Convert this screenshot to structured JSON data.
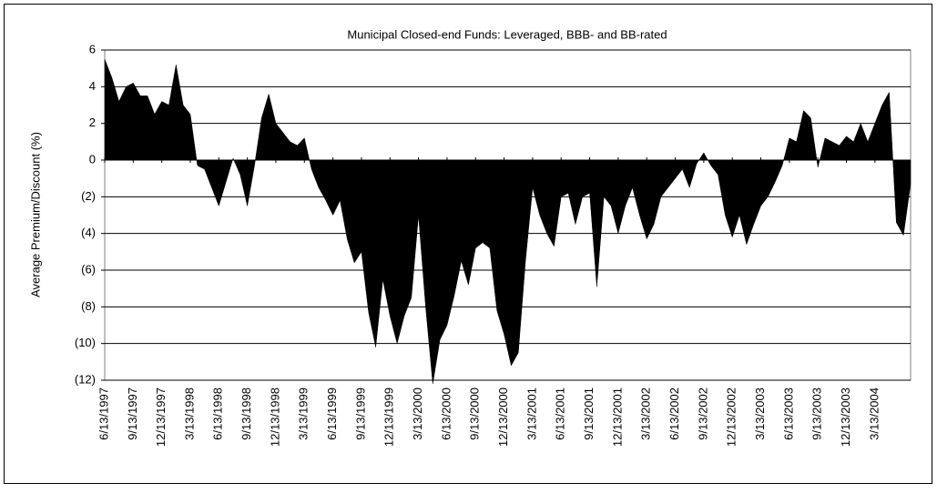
{
  "chart_data": {
    "type": "area",
    "title": "Municipal Closed-end Funds: Leveraged, BBB- and BB-rated",
    "y_label": "Average Premium/Discount (%)",
    "color": "#000000",
    "categories": [
      "6/13/1997",
      null,
      null,
      null,
      "9/13/1997",
      null,
      null,
      null,
      "12/13/1997",
      null,
      null,
      null,
      "3/13/1998",
      null,
      null,
      null,
      "6/13/1998",
      null,
      null,
      null,
      "9/13/1998",
      null,
      null,
      null,
      "12/13/1998",
      null,
      null,
      null,
      "3/13/1999",
      null,
      null,
      null,
      "6/13/1999",
      null,
      null,
      null,
      "9/13/1999",
      null,
      null,
      null,
      "12/13/1999",
      null,
      null,
      null,
      "3/13/2000",
      null,
      null,
      null,
      "6/13/2000",
      null,
      null,
      null,
      "9/13/2000",
      null,
      null,
      null,
      "12/13/2000",
      null,
      null,
      null,
      "3/13/2001",
      null,
      null,
      null,
      "6/13/2001",
      null,
      null,
      null,
      "9/13/2001",
      null,
      null,
      null,
      "12/13/2001",
      null,
      null,
      null,
      "3/13/2002",
      null,
      null,
      null,
      "6/13/2002",
      null,
      null,
      null,
      "9/13/2002",
      null,
      null,
      null,
      "12/13/2002",
      null,
      null,
      null,
      "3/13/2003",
      null,
      null,
      null,
      "6/13/2003",
      null,
      null,
      null,
      "9/13/2003",
      null,
      null,
      null,
      "12/13/2003",
      null,
      null,
      null,
      "3/13/2004",
      null,
      null,
      null,
      null,
      null
    ],
    "values": [
      5.5,
      4.5,
      3.2,
      4.0,
      4.2,
      3.5,
      3.5,
      2.5,
      3.2,
      3.0,
      5.2,
      3.0,
      2.5,
      -0.3,
      -0.5,
      -1.5,
      -2.5,
      -1.2,
      0.1,
      -0.8,
      -2.5,
      -0.3,
      2.3,
      3.6,
      2.0,
      1.5,
      1.0,
      0.8,
      1.2,
      -0.5,
      -1.5,
      -2.2,
      -3.0,
      -2.2,
      -4.3,
      -5.6,
      -5.0,
      -8.3,
      -10.2,
      -6.5,
      -8.5,
      -10.0,
      -8.5,
      -7.5,
      -3.0,
      -8.0,
      -12.2,
      -9.8,
      -9.0,
      -7.4,
      -5.5,
      -6.8,
      -4.8,
      -4.5,
      -4.8,
      -8.2,
      -9.5,
      -11.2,
      -10.5,
      -5.5,
      -1.5,
      -3.0,
      -4.0,
      -4.7,
      -2.0,
      -1.8,
      -3.5,
      -2.0,
      -1.8,
      -6.9,
      -2.0,
      -2.5,
      -4.0,
      -2.5,
      -1.5,
      -3.0,
      -4.3,
      -3.5,
      -2.0,
      -1.5,
      -1.0,
      -0.5,
      -1.5,
      -0.2,
      0.4,
      -0.3,
      -0.8,
      -3.0,
      -4.2,
      -3.0,
      -4.6,
      -3.5,
      -2.5,
      -2.0,
      -1.2,
      -0.3,
      1.2,
      1.0,
      2.7,
      2.3,
      -0.4,
      1.2,
      1.0,
      0.8,
      1.3,
      1.0,
      2.0,
      1.0,
      2.0,
      3.0,
      3.7,
      -3.4,
      -4.1,
      -1.3
    ],
    "ylim": [
      -12,
      6
    ],
    "yticks": [
      {
        "value": -12,
        "label": "(12)"
      },
      {
        "value": -10,
        "label": "(10)"
      },
      {
        "value": -8,
        "label": "(8)"
      },
      {
        "value": -6,
        "label": "(6)"
      },
      {
        "value": -4,
        "label": "(4)"
      },
      {
        "value": -2,
        "label": "(2)"
      },
      0,
      2,
      4,
      6
    ],
    "grid": true
  }
}
